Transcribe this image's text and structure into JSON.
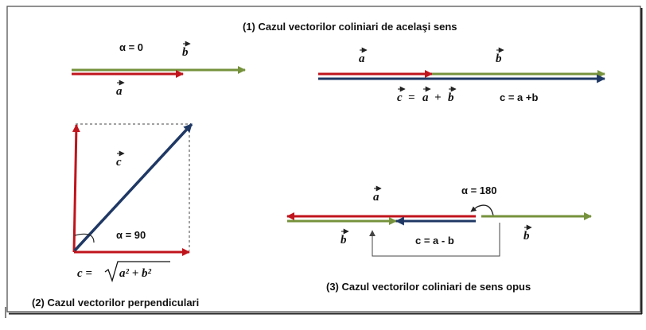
{
  "captions": {
    "case1": "(1)  Cazul vectorilor coliniari de acelaşi sens",
    "case2": "(2) Cazul vectorilor perpendiculari",
    "case3": "(3)  Cazul vectorilor  coliniari de sens  opus"
  },
  "angles": {
    "a0": "α = 0",
    "a90": "α = 90",
    "a180": "α = 180"
  },
  "vectors": {
    "a": "a",
    "b": "b",
    "c": "c"
  },
  "equations": {
    "vector_sum": "+",
    "sum_magnitude": "c = a +b",
    "diff_magnitude": "c = a - b",
    "pythag_lhs": "c =",
    "pythag_rhs": "a² + b²"
  },
  "colors": {
    "a": "#c0141c",
    "b": "#76923c",
    "c": "#1f3864",
    "guide": "#444444",
    "frame": "#555555"
  }
}
